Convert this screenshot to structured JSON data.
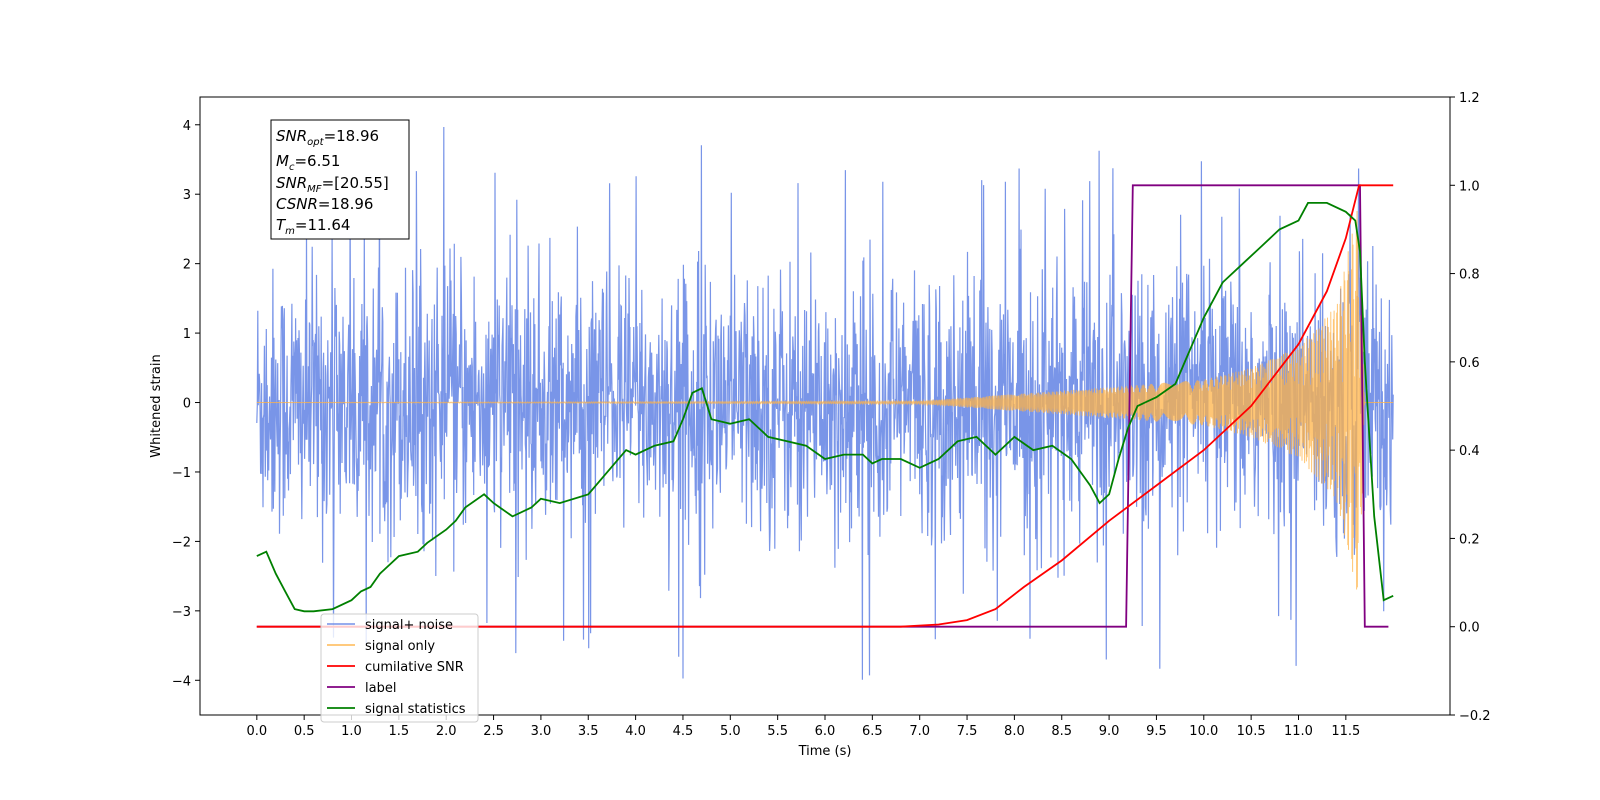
{
  "chart_data": {
    "type": "line",
    "xlabel": "Time (s)",
    "ylabel": "Whitened strain",
    "xlim": [
      -0.6,
      12.6
    ],
    "ylim": [
      -4.5,
      4.4
    ],
    "y2lim": [
      -0.2,
      1.2
    ],
    "x_ticks": [
      "0.0",
      "0.5",
      "1.0",
      "1.5",
      "2.0",
      "2.5",
      "3.0",
      "3.5",
      "4.0",
      "4.5",
      "5.0",
      "5.5",
      "6.0",
      "6.5",
      "7.0",
      "7.5",
      "8.0",
      "8.5",
      "9.0",
      "9.5",
      "10.0",
      "10.5",
      "11.0",
      "11.5"
    ],
    "y_ticks": [
      "−4",
      "−3",
      "−2",
      "−1",
      "0",
      "1",
      "2",
      "3",
      "4"
    ],
    "y2_ticks": [
      "−0.2",
      "0.0",
      "0.2",
      "0.4",
      "0.6",
      "0.8",
      "1.0",
      "1.2"
    ],
    "grid": false,
    "legend_position": "lower-left",
    "annotation": {
      "snr_opt": {
        "sym": "SNR",
        "sub": "opt",
        "value": "=18.96"
      },
      "mc": {
        "sym": "M",
        "sub": "c",
        "value": "=6.51"
      },
      "snr_mf": {
        "sym": "SNR",
        "sub": "MF",
        "value": "=[20.55]"
      },
      "csnr": {
        "sym": "CSNR",
        "sub": "",
        "value": "=18.96"
      },
      "tm": {
        "sym": "T",
        "sub": "m",
        "value": "=11.64"
      }
    },
    "series": [
      {
        "name": "signal+ noise",
        "color": "#6a8ae6",
        "axis": "left",
        "noise_band": [
          -2.6,
          2.6
        ],
        "peaks": [
          4.05,
          -4.1
        ]
      },
      {
        "name": "signal only",
        "color": "#ffb347",
        "axis": "left",
        "envelope": [
          [
            0,
            0
          ],
          [
            7.0,
            0.02
          ],
          [
            8.0,
            0.12
          ],
          [
            9.0,
            0.22
          ],
          [
            10.0,
            0.33
          ],
          [
            10.5,
            0.5
          ],
          [
            11.0,
            0.8
          ],
          [
            11.4,
            1.4
          ],
          [
            11.64,
            2.9
          ],
          [
            11.7,
            0
          ]
        ]
      },
      {
        "name": "cumilative SNR",
        "color": "#ff0000",
        "axis": "right",
        "points": [
          [
            0,
            0
          ],
          [
            6.8,
            0
          ],
          [
            7.2,
            0.005
          ],
          [
            7.5,
            0.015
          ],
          [
            7.8,
            0.04
          ],
          [
            8.1,
            0.09
          ],
          [
            8.5,
            0.15
          ],
          [
            9.0,
            0.24
          ],
          [
            9.5,
            0.32
          ],
          [
            10.0,
            0.4
          ],
          [
            10.5,
            0.5
          ],
          [
            11.0,
            0.64
          ],
          [
            11.3,
            0.76
          ],
          [
            11.5,
            0.88
          ],
          [
            11.64,
            1.0
          ],
          [
            12.0,
            1.0
          ]
        ]
      },
      {
        "name": "label",
        "color": "#800080",
        "axis": "right",
        "points": [
          [
            0,
            0
          ],
          [
            9.18,
            0
          ],
          [
            9.25,
            1.0
          ],
          [
            11.65,
            1.0
          ],
          [
            11.7,
            0
          ],
          [
            11.95,
            0
          ]
        ]
      },
      {
        "name": "signal statistics",
        "color": "#008000",
        "axis": "right",
        "points": [
          [
            0,
            0.16
          ],
          [
            0.1,
            0.17
          ],
          [
            0.2,
            0.12
          ],
          [
            0.3,
            0.08
          ],
          [
            0.4,
            0.04
          ],
          [
            0.5,
            0.035
          ],
          [
            0.6,
            0.035
          ],
          [
            0.8,
            0.04
          ],
          [
            1.0,
            0.06
          ],
          [
            1.1,
            0.08
          ],
          [
            1.2,
            0.09
          ],
          [
            1.3,
            0.12
          ],
          [
            1.5,
            0.16
          ],
          [
            1.7,
            0.17
          ],
          [
            1.8,
            0.19
          ],
          [
            2.0,
            0.22
          ],
          [
            2.1,
            0.24
          ],
          [
            2.2,
            0.27
          ],
          [
            2.4,
            0.3
          ],
          [
            2.5,
            0.28
          ],
          [
            2.7,
            0.25
          ],
          [
            2.9,
            0.27
          ],
          [
            3.0,
            0.29
          ],
          [
            3.2,
            0.28
          ],
          [
            3.5,
            0.3
          ],
          [
            3.7,
            0.35
          ],
          [
            3.9,
            0.4
          ],
          [
            4.0,
            0.39
          ],
          [
            4.2,
            0.41
          ],
          [
            4.4,
            0.42
          ],
          [
            4.5,
            0.47
          ],
          [
            4.6,
            0.53
          ],
          [
            4.7,
            0.54
          ],
          [
            4.8,
            0.47
          ],
          [
            5.0,
            0.46
          ],
          [
            5.2,
            0.47
          ],
          [
            5.4,
            0.43
          ],
          [
            5.6,
            0.42
          ],
          [
            5.8,
            0.41
          ],
          [
            6.0,
            0.38
          ],
          [
            6.2,
            0.39
          ],
          [
            6.4,
            0.39
          ],
          [
            6.5,
            0.37
          ],
          [
            6.6,
            0.38
          ],
          [
            6.8,
            0.38
          ],
          [
            7.0,
            0.36
          ],
          [
            7.2,
            0.38
          ],
          [
            7.4,
            0.42
          ],
          [
            7.6,
            0.43
          ],
          [
            7.8,
            0.39
          ],
          [
            8.0,
            0.43
          ],
          [
            8.2,
            0.4
          ],
          [
            8.4,
            0.41
          ],
          [
            8.6,
            0.38
          ],
          [
            8.8,
            0.32
          ],
          [
            8.9,
            0.28
          ],
          [
            9.0,
            0.3
          ],
          [
            9.1,
            0.38
          ],
          [
            9.2,
            0.45
          ],
          [
            9.3,
            0.5
          ],
          [
            9.5,
            0.52
          ],
          [
            9.7,
            0.55
          ],
          [
            9.8,
            0.6
          ],
          [
            9.9,
            0.65
          ],
          [
            10.0,
            0.7
          ],
          [
            10.2,
            0.78
          ],
          [
            10.4,
            0.82
          ],
          [
            10.6,
            0.86
          ],
          [
            10.8,
            0.9
          ],
          [
            11.0,
            0.92
          ],
          [
            11.1,
            0.96
          ],
          [
            11.3,
            0.96
          ],
          [
            11.5,
            0.94
          ],
          [
            11.6,
            0.92
          ],
          [
            11.65,
            0.85
          ],
          [
            11.7,
            0.6
          ],
          [
            11.8,
            0.25
          ],
          [
            11.9,
            0.06
          ],
          [
            12.0,
            0.07
          ]
        ]
      }
    ]
  }
}
